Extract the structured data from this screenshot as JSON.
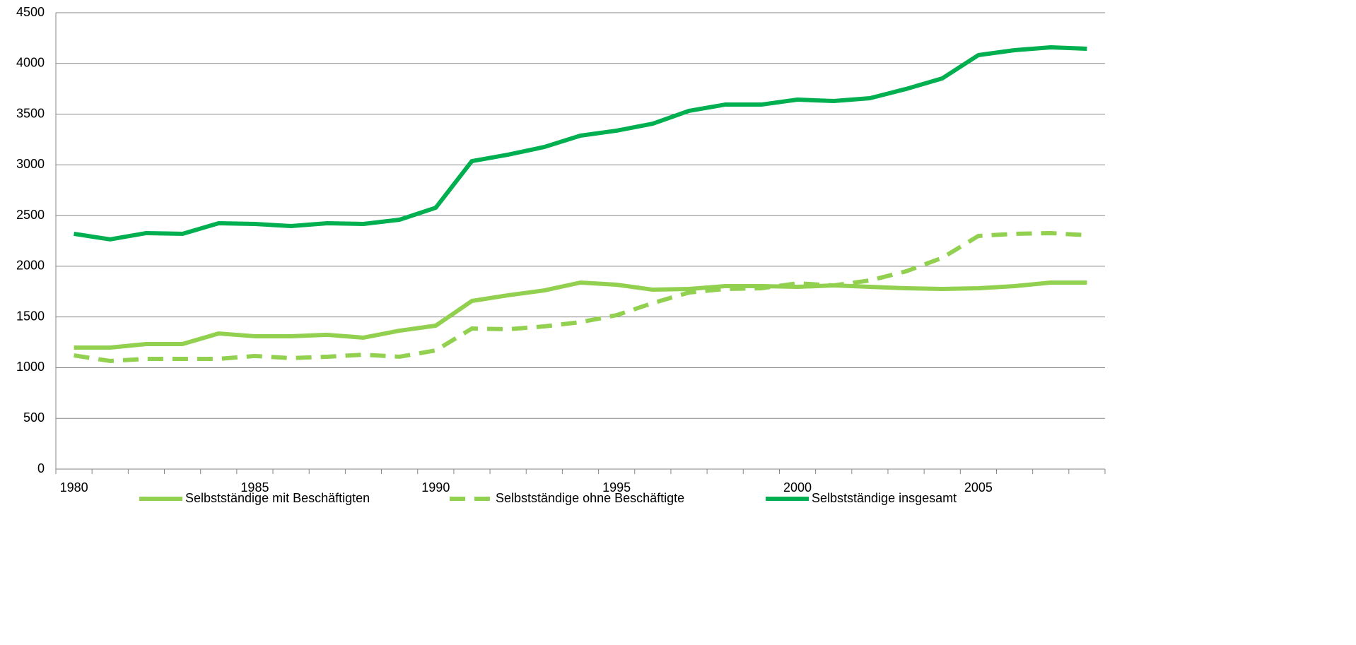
{
  "chart_data": {
    "type": "line",
    "categories": [
      "1980",
      null,
      null,
      null,
      null,
      "1985",
      null,
      null,
      null,
      null,
      "1990",
      null,
      null,
      null,
      null,
      "1995",
      null,
      null,
      null,
      null,
      "2000",
      null,
      null,
      null,
      null,
      "2005",
      null,
      null,
      null
    ],
    "series": [
      {
        "name": "Selbstständige mit Beschäftigten",
        "color": "#92d050",
        "style": "solid",
        "values": [
          1198,
          1198,
          1233,
          1233,
          1337,
          1310,
          1310,
          1324,
          1296,
          1365,
          1414,
          1658,
          1714,
          1762,
          1839,
          1818,
          1769,
          1776,
          1804,
          1804,
          1797,
          1811,
          1797,
          1783,
          1776,
          1783,
          1804,
          1839,
          1839
        ]
      },
      {
        "name": "Selbstständige ohne Beschäftigte",
        "color": "#92d050",
        "style": "dashed",
        "values": [
          1121,
          1066,
          1087,
          1087,
          1087,
          1115,
          1094,
          1108,
          1128,
          1108,
          1170,
          1386,
          1379,
          1407,
          1449,
          1518,
          1637,
          1741,
          1776,
          1783,
          1832,
          1811,
          1860,
          1950,
          2083,
          2299,
          2320,
          2327,
          2306
        ]
      },
      {
        "name": "Selbstständige insgesamt",
        "color": "#00b050",
        "style": "solid",
        "values": [
          2320,
          2265,
          2327,
          2320,
          2424,
          2417,
          2396,
          2424,
          2417,
          2459,
          2577,
          3037,
          3100,
          3176,
          3288,
          3337,
          3406,
          3532,
          3594,
          3594,
          3643,
          3629,
          3657,
          3748,
          3852,
          4082,
          4131,
          4159,
          4145
        ]
      }
    ],
    "ylim": [
      0,
      4500
    ],
    "yticks": [
      0,
      500,
      1000,
      1500,
      2000,
      2500,
      3000,
      3500,
      4000,
      4500
    ],
    "grid": true,
    "legend": "bottom"
  }
}
